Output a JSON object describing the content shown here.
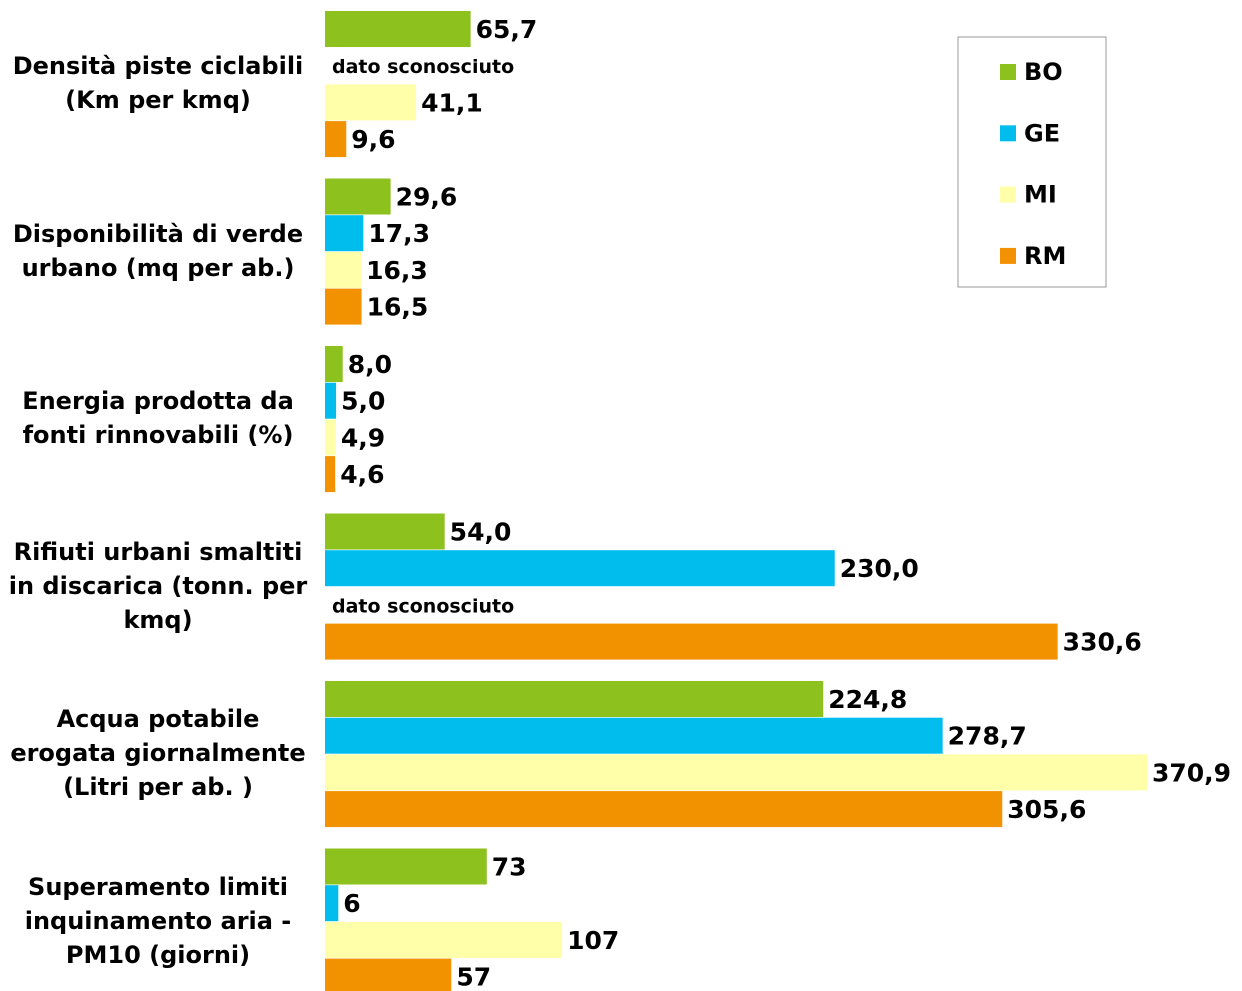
{
  "chart_data": {
    "type": "bar",
    "orientation": "horizontal",
    "categories": [
      "Densità piste ciclabili (Km per kmq)",
      "Disponibilità di verde urbano (mq per ab.)",
      "Energia prodotta da fonti rinnovabili (%)",
      "Rifiuti urbani smaltiti in discarica (tonn. per kmq)",
      "Acqua potabile erogata giornalmente (Litri per ab. )",
      "Superamento limiti inquinamento aria - PM10 (giorni)"
    ],
    "series": [
      {
        "name": "BO",
        "color": "#8cc11e",
        "values": [
          65.7,
          29.6,
          8.0,
          54.0,
          224.8,
          73
        ],
        "value_labels": [
          "65,7",
          "29,6",
          "8,0",
          "54,0",
          "224,8",
          "73"
        ]
      },
      {
        "name": "GE",
        "color": "#00bdee",
        "values": [
          null,
          17.3,
          5.0,
          230.0,
          278.7,
          6
        ],
        "value_labels": [
          "dato sconosciuto",
          "17,3",
          "5,0",
          "230,0",
          "278,7",
          "6"
        ]
      },
      {
        "name": "MI",
        "color": "#ffffaa",
        "values": [
          41.1,
          16.3,
          4.9,
          null,
          370.9,
          107
        ],
        "value_labels": [
          "41,1",
          "16,3",
          "4,9",
          "dato sconosciuto",
          "370,9",
          "107"
        ]
      },
      {
        "name": "RM",
        "color": "#f39200",
        "values": [
          9.6,
          16.5,
          4.6,
          330.6,
          305.6,
          57
        ],
        "value_labels": [
          "9,6",
          "16,5",
          "4,6",
          "330,6",
          "305,6",
          "57"
        ]
      }
    ],
    "legend": "top-right"
  }
}
